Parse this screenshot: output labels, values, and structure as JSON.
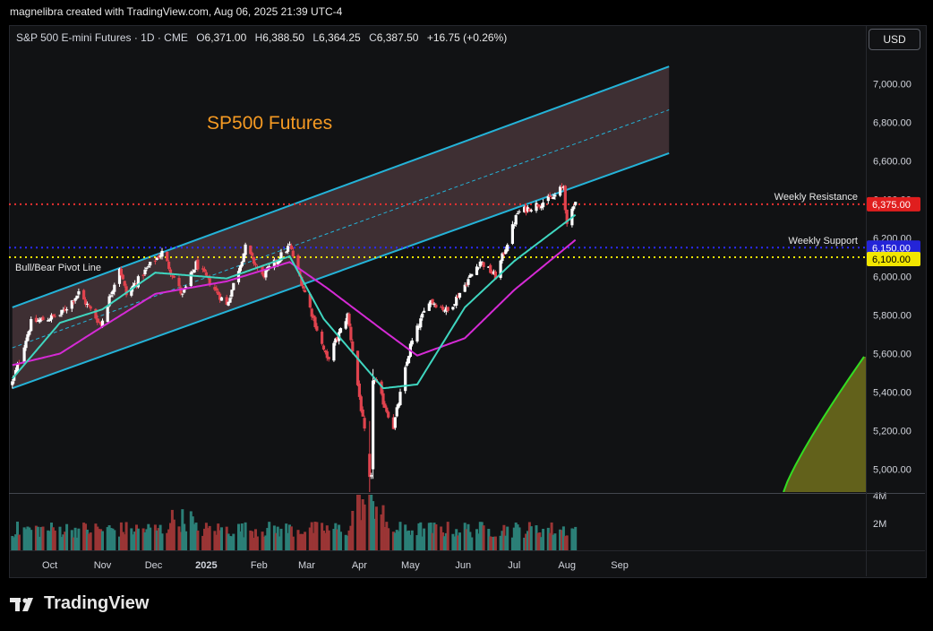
{
  "caption": "magnelibra created with TradingView.com, Aug 06, 2025 21:39 UTC-4",
  "symbol": {
    "name": "S&P 500 E-mini Futures · 1D · CME",
    "open_label": "O",
    "open": "6,371.00",
    "high_label": "H",
    "high": "6,388.50",
    "low_label": "L",
    "low": "6,364.25",
    "close_label": "C",
    "close": "6,387.50",
    "change": "+16.75 (+0.26%)"
  },
  "currency_button": "USD",
  "annotations": {
    "title": "SP500 Futures",
    "weekly_resistance": "Weekly Resistance",
    "weekly_support": "Weekly Support",
    "pivot": "Bull/Bear Pivot Line"
  },
  "price_tags": [
    {
      "label": "6,375.00",
      "value": 6375,
      "bg": "#e01e1e",
      "fg": "#ffffff"
    },
    {
      "label": "6,150.00",
      "value": 6150,
      "bg": "#2424d8",
      "fg": "#ffffff"
    },
    {
      "label": "6,100.00",
      "value": 6100,
      "bg": "#f2e600",
      "fg": "#000000"
    }
  ],
  "colors": {
    "up": "#ffffff",
    "down": "#e0434e",
    "ema_fast": "#3fd6c0",
    "ema_slow": "#d52ad5",
    "channel": "#24b3d8",
    "channel_fill": "#5e4348",
    "resistance": "#e83030",
    "support": "#2b2bff",
    "pivot": "#f2e600",
    "title": "#f59a23",
    "vol_up": "#2b7f77",
    "vol_down": "#9a3535",
    "tv_curve": "#33dd22",
    "tv_fill": "#6b6a1c"
  },
  "footer": {
    "brand": "TradingView"
  },
  "chart_data": {
    "type": "candlestick",
    "y_axis": {
      "ticks": [
        "7,000.00",
        "6,800.00",
        "6,600.00",
        "6,400.00",
        "6,200.00",
        "6,000.00",
        "5,800.00",
        "5,600.00",
        "5,400.00",
        "5,200.00",
        "5,000.00"
      ],
      "range": [
        4875,
        7160
      ]
    },
    "x_axis": {
      "labels": [
        "Oct",
        "Nov",
        "Dec",
        "2025",
        "Feb",
        "Mar",
        "Apr",
        "May",
        "Jun",
        "Jul",
        "Aug",
        "Sep"
      ]
    },
    "volume_axis": {
      "ticks": [
        "4M",
        "2M"
      ]
    },
    "horizontal_levels": {
      "weekly_resistance": 6375,
      "weekly_support": 6150,
      "bull_bear_pivot": 6100
    },
    "close_path": [
      [
        "2024-09-09",
        5450
      ],
      [
        "2024-09-20",
        5760
      ],
      [
        "2024-10-07",
        5800
      ],
      [
        "2024-10-18",
        5915
      ],
      [
        "2024-10-31",
        5750
      ],
      [
        "2024-11-11",
        6050
      ],
      [
        "2024-11-15",
        5905
      ],
      [
        "2024-11-29",
        6060
      ],
      [
        "2024-12-06",
        6125
      ],
      [
        "2024-12-18",
        5900
      ],
      [
        "2024-12-26",
        6065
      ],
      [
        "2025-01-13",
        5850
      ],
      [
        "2025-01-24",
        6150
      ],
      [
        "2025-02-03",
        6000
      ],
      [
        "2025-02-19",
        6160
      ],
      [
        "2025-03-13",
        5565
      ],
      [
        "2025-03-25",
        5800
      ],
      [
        "2025-04-08",
        4950
      ],
      [
        "2025-04-09",
        5480
      ],
      [
        "2025-04-21",
        5220
      ],
      [
        "2025-05-01",
        5640
      ],
      [
        "2025-05-12",
        5880
      ],
      [
        "2025-05-23",
        5820
      ],
      [
        "2025-06-11",
        6080
      ],
      [
        "2025-06-20",
        6000
      ],
      [
        "2025-07-03",
        6330
      ],
      [
        "2025-07-24",
        6410
      ],
      [
        "2025-07-30",
        6470
      ],
      [
        "2025-08-01",
        6255
      ],
      [
        "2025-08-06",
        6387.5
      ]
    ],
    "ema_fast_path": [
      [
        "2024-09-09",
        5470
      ],
      [
        "2024-10-07",
        5760
      ],
      [
        "2024-11-01",
        5830
      ],
      [
        "2024-12-02",
        6020
      ],
      [
        "2025-01-13",
        5990
      ],
      [
        "2025-02-19",
        6105
      ],
      [
        "2025-03-11",
        5780
      ],
      [
        "2025-04-15",
        5420
      ],
      [
        "2025-05-05",
        5440
      ],
      [
        "2025-06-02",
        5840
      ],
      [
        "2025-07-01",
        6080
      ],
      [
        "2025-08-06",
        6320
      ]
    ],
    "ema_slow_path": [
      [
        "2024-09-09",
        5540
      ],
      [
        "2024-10-07",
        5600
      ],
      [
        "2024-11-01",
        5740
      ],
      [
        "2024-12-02",
        5910
      ],
      [
        "2025-01-13",
        5975
      ],
      [
        "2025-02-19",
        6075
      ],
      [
        "2025-03-13",
        5940
      ],
      [
        "2025-04-15",
        5720
      ],
      [
        "2025-05-05",
        5590
      ],
      [
        "2025-06-02",
        5680
      ],
      [
        "2025-07-01",
        5930
      ],
      [
        "2025-08-06",
        6190
      ]
    ],
    "channel": {
      "start": "2024-09-09",
      "end": "2025-09-30",
      "upper_start": 5840,
      "upper_end": 7090,
      "lower_start": 5420,
      "lower_end": 6640,
      "mid_start": 5630,
      "mid_end": 6865
    }
  }
}
